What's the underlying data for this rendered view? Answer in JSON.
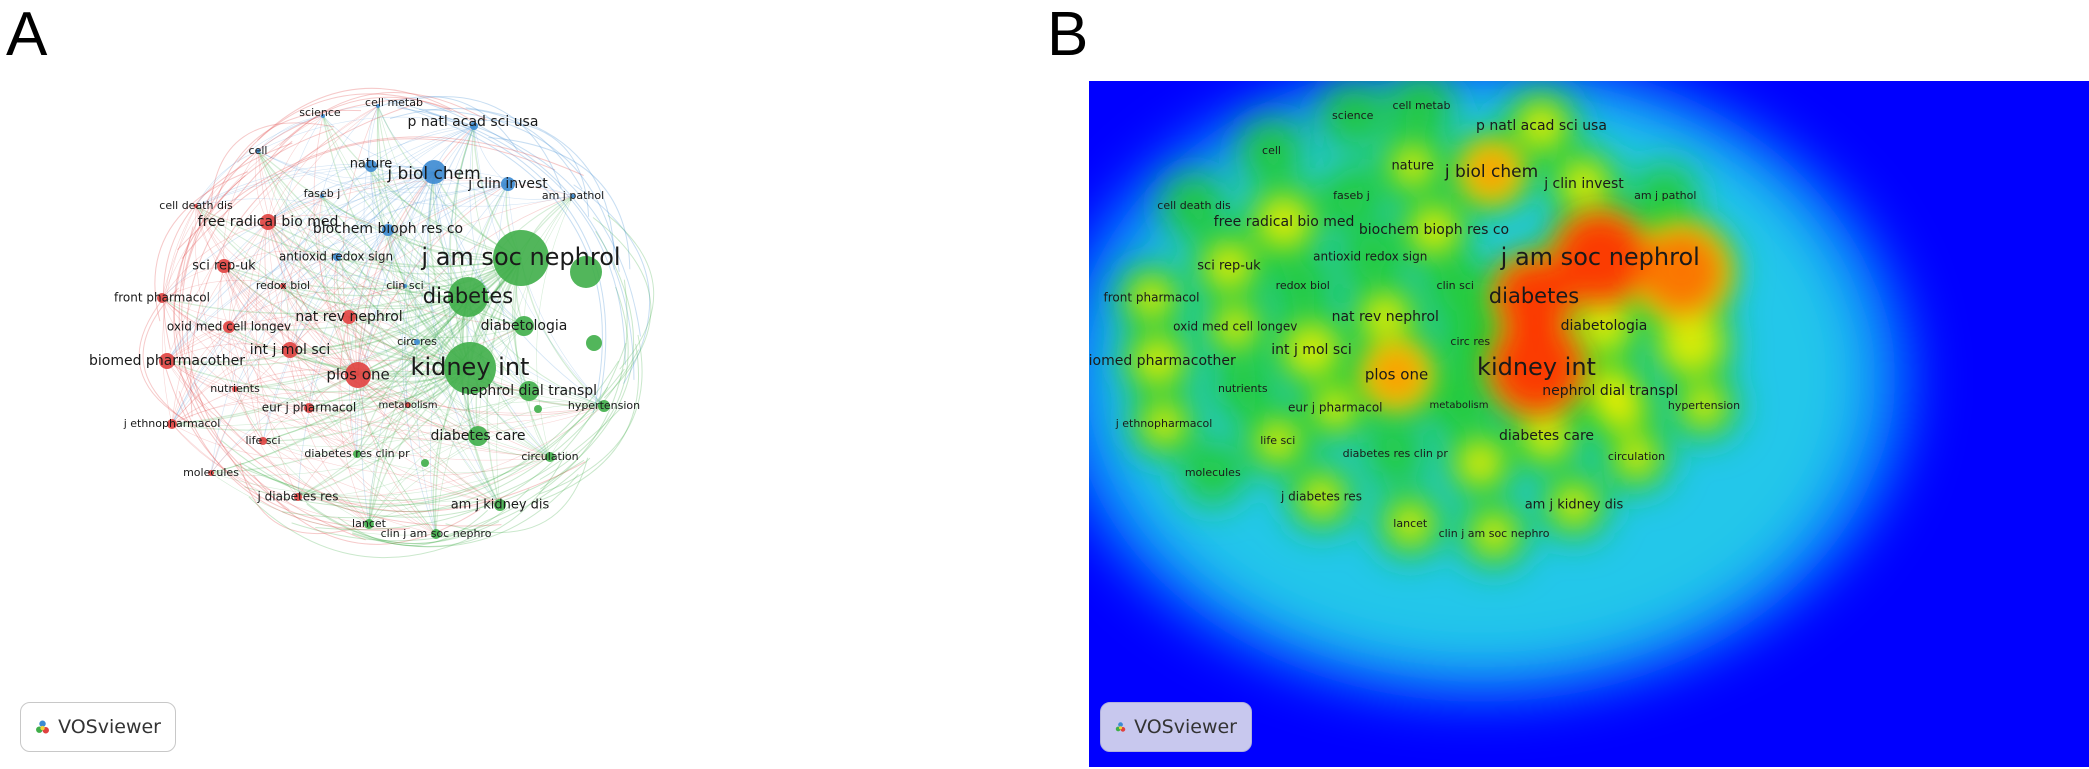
{
  "panels": [
    {
      "letter": "A",
      "kind": "network-visualization"
    },
    {
      "letter": "B",
      "kind": "density-visualization"
    }
  ],
  "brand": {
    "label": "VOSviewer",
    "icon": "vosviewer-logo-icon"
  },
  "colors": {
    "cluster_red": "#e0413f",
    "cluster_green": "#3fae49",
    "cluster_blue": "#3b8ad2",
    "density_background": "#0000ff",
    "density_badge": "#c8c8ee"
  },
  "clusters": [
    "red",
    "green",
    "blue"
  ],
  "nodes": [
    {
      "id": "cell metab",
      "cluster": "blue",
      "weight": 1
    },
    {
      "id": "science",
      "cluster": "blue",
      "weight": 1
    },
    {
      "id": "p natl acad sci usa",
      "cluster": "blue",
      "weight": 3
    },
    {
      "id": "cell",
      "cluster": "blue",
      "weight": 1
    },
    {
      "id": "nature",
      "cluster": "blue",
      "weight": 2
    },
    {
      "id": "j biol chem",
      "cluster": "blue",
      "weight": 5
    },
    {
      "id": "j clin invest",
      "cluster": "blue",
      "weight": 3
    },
    {
      "id": "faseb j",
      "cluster": "blue",
      "weight": 1
    },
    {
      "id": "am j pathol",
      "cluster": "blue",
      "weight": 1
    },
    {
      "id": "biochem bioph res co",
      "cluster": "blue",
      "weight": 3
    },
    {
      "id": "antioxid redox sign",
      "cluster": "blue",
      "weight": 1
    },
    {
      "id": "clin sci",
      "cluster": "blue",
      "weight": 1
    },
    {
      "id": "circ res",
      "cluster": "blue",
      "weight": 1
    },
    {
      "id": "cell death dis",
      "cluster": "red",
      "weight": 1
    },
    {
      "id": "free radical bio med",
      "cluster": "red",
      "weight": 4
    },
    {
      "id": "sci rep-uk",
      "cluster": "red",
      "weight": 3
    },
    {
      "id": "redox biol",
      "cluster": "red",
      "weight": 1
    },
    {
      "id": "front pharmacol",
      "cluster": "red",
      "weight": 2
    },
    {
      "id": "oxid med cell longev",
      "cluster": "red",
      "weight": 2
    },
    {
      "id": "nat rev nephrol",
      "cluster": "red",
      "weight": 3
    },
    {
      "id": "int j mol sci",
      "cluster": "red",
      "weight": 4
    },
    {
      "id": "biomed pharmacother",
      "cluster": "red",
      "weight": 3
    },
    {
      "id": "plos one",
      "cluster": "red",
      "weight": 6
    },
    {
      "id": "nutrients",
      "cluster": "red",
      "weight": 1
    },
    {
      "id": "eur j pharmacol",
      "cluster": "red",
      "weight": 2
    },
    {
      "id": "metabolism",
      "cluster": "red",
      "weight": 1
    },
    {
      "id": "j ethnopharmacol",
      "cluster": "red",
      "weight": 2
    },
    {
      "id": "life sci",
      "cluster": "red",
      "weight": 2
    },
    {
      "id": "molecules",
      "cluster": "red",
      "weight": 1
    },
    {
      "id": "j diabetes res",
      "cluster": "red",
      "weight": 2
    },
    {
      "id": "j am soc nephrol",
      "cluster": "green",
      "weight": 10
    },
    {
      "id": "diabetes",
      "cluster": "green",
      "weight": 8
    },
    {
      "id": "diabetologia",
      "cluster": "green",
      "weight": 4
    },
    {
      "id": "kidney int",
      "cluster": "green",
      "weight": 10
    },
    {
      "id": "nephrol dial transpl",
      "cluster": "green",
      "weight": 3
    },
    {
      "id": "hypertension",
      "cluster": "green",
      "weight": 2
    },
    {
      "id": "diabetes care",
      "cluster": "green",
      "weight": 3
    },
    {
      "id": "diabetes res clin pr",
      "cluster": "green",
      "weight": 1
    },
    {
      "id": "circulation",
      "cluster": "green",
      "weight": 2
    },
    {
      "id": "am j kidney dis",
      "cluster": "green",
      "weight": 2
    },
    {
      "id": "lancet",
      "cluster": "green",
      "weight": 2
    },
    {
      "id": "clin j am soc nephro",
      "cluster": "green",
      "weight": 2
    }
  ]
}
